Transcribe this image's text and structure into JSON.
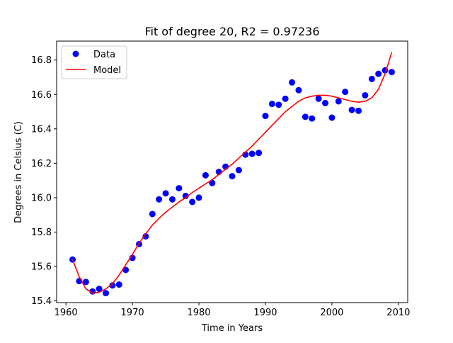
{
  "chart_data": {
    "type": "scatter",
    "title": "Fit of degree 20, R2 = 0.97236",
    "xlabel": "Time in Years",
    "ylabel": "Degrees in Celsius (C)",
    "xlim": [
      1958.6,
      2011.4
    ],
    "ylim": [
      15.39,
      16.91
    ],
    "xticks": [
      1960,
      1970,
      1980,
      1990,
      2000,
      2010
    ],
    "yticks": [
      15.4,
      15.6,
      15.8,
      16.0,
      16.2,
      16.4,
      16.6,
      16.8
    ],
    "grid": false,
    "legend_position": "top-left",
    "colors": {
      "data": "#0000ff",
      "model": "#ff0000"
    },
    "series": [
      {
        "name": "Data",
        "kind": "scatter",
        "x": [
          1961,
          1962,
          1963,
          1964,
          1965,
          1966,
          1967,
          1968,
          1969,
          1970,
          1971,
          1972,
          1973,
          1974,
          1975,
          1976,
          1977,
          1978,
          1979,
          1980,
          1981,
          1982,
          1983,
          1984,
          1985,
          1986,
          1987,
          1988,
          1989,
          1990,
          1991,
          1992,
          1993,
          1994,
          1995,
          1996,
          1997,
          1998,
          1999,
          2000,
          2001,
          2002,
          2003,
          2004,
          2005,
          2006,
          2007,
          2008,
          2009
        ],
        "y": [
          15.64,
          15.515,
          15.51,
          15.455,
          15.47,
          15.445,
          15.49,
          15.495,
          15.58,
          15.65,
          15.73,
          15.775,
          15.905,
          15.99,
          16.025,
          15.99,
          16.055,
          16.01,
          15.975,
          16.0,
          16.13,
          16.085,
          16.15,
          16.18,
          16.125,
          16.16,
          16.25,
          16.255,
          16.26,
          16.475,
          16.545,
          16.54,
          16.575,
          16.67,
          16.625,
          16.47,
          16.46,
          16.575,
          16.55,
          16.465,
          16.56,
          16.615,
          16.51,
          16.505,
          16.595,
          16.69,
          16.72,
          16.74,
          16.73
        ]
      },
      {
        "name": "Model",
        "kind": "line",
        "x": [
          1961,
          1962,
          1963,
          1964,
          1965,
          1966,
          1967,
          1968,
          1969,
          1970,
          1971,
          1972,
          1973,
          1974,
          1975,
          1976,
          1977,
          1978,
          1979,
          1980,
          1981,
          1982,
          1983,
          1984,
          1985,
          1986,
          1987,
          1988,
          1989,
          1990,
          1991,
          1992,
          1993,
          1994,
          1995,
          1996,
          1997,
          1998,
          1999,
          2000,
          2001,
          2002,
          2003,
          2004,
          2005,
          2006,
          2007,
          2008,
          2009
        ],
        "y": [
          15.64,
          15.54,
          15.47,
          15.445,
          15.45,
          15.47,
          15.5,
          15.55,
          15.61,
          15.67,
          15.735,
          15.79,
          15.84,
          15.88,
          15.915,
          15.945,
          15.975,
          16.0,
          16.03,
          16.055,
          16.08,
          16.105,
          16.135,
          16.165,
          16.195,
          16.23,
          16.265,
          16.3,
          16.34,
          16.38,
          16.42,
          16.46,
          16.5,
          16.53,
          16.56,
          16.58,
          16.59,
          16.595,
          16.595,
          16.59,
          16.58,
          16.57,
          16.56,
          16.555,
          16.56,
          16.58,
          16.63,
          16.72,
          16.845
        ]
      }
    ]
  }
}
